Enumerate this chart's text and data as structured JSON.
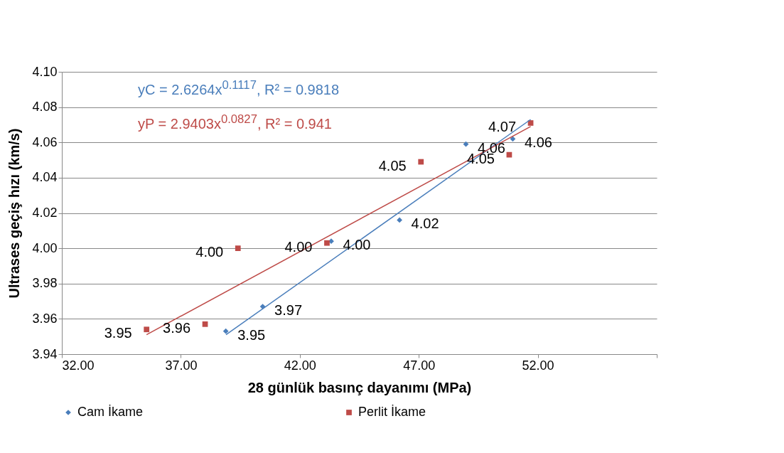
{
  "chart_data": {
    "type": "scatter",
    "xlabel": "28 günlük basınç dayanımı (MPa)",
    "ylabel": "Ultrases geçiş hızı (km/s)",
    "xlim": [
      32,
      57
    ],
    "xticks": [
      {
        "value": 32,
        "label": "32.00"
      },
      {
        "value": 37,
        "label": "37.00"
      },
      {
        "value": 42,
        "label": "42.00"
      },
      {
        "value": 47,
        "label": "47.00"
      },
      {
        "value": 52,
        "label": "52.00"
      },
      {
        "value": 57,
        "label": null
      }
    ],
    "ylim": [
      3.94,
      4.1
    ],
    "yticks": [
      {
        "value": 3.94,
        "label": "3.94"
      },
      {
        "value": 3.96,
        "label": "3.96"
      },
      {
        "value": 3.98,
        "label": "3.98"
      },
      {
        "value": 4.0,
        "label": "4.00"
      },
      {
        "value": 4.02,
        "label": "4.02"
      },
      {
        "value": 4.04,
        "label": "4.04"
      },
      {
        "value": 4.06,
        "label": "4.06"
      },
      {
        "value": 4.08,
        "label": "4.08"
      },
      {
        "value": 4.1,
        "label": "4.10"
      }
    ],
    "grid": "y",
    "legend": "bottom",
    "annotations": [
      "yC = 2.6264x$^{0.1117}$,  R² = 0.9818",
      "yP = 2.9403x$^{0.0827}$,  R² = 0.941"
    ],
    "series": [
      {
        "name": "Cam İkame",
        "color": "#4a7ebb",
        "marker": "diamond",
        "x": [
          38.89,
          40.44,
          43.32,
          46.19,
          48.98,
          50.95
        ],
        "values": [
          3.953,
          3.967,
          4.004,
          4.016,
          4.059,
          4.062
        ],
        "value_labels": [
          "3.95",
          "3.97",
          "4.00",
          "4.02",
          "4.06",
          "4.06"
        ]
      },
      {
        "name": "Perlit İkame",
        "color": "#be4b48",
        "marker": "square",
        "x": [
          35.56,
          38.02,
          39.4,
          43.14,
          47.09,
          50.8,
          51.7
        ],
        "values": [
          3.954,
          3.957,
          4.0,
          4.003,
          4.049,
          4.053,
          4.071
        ],
        "value_labels": [
          "3.95",
          "3.96",
          "4.00",
          "4.00",
          "4.05",
          "4.05",
          "4.07"
        ]
      },
      {
        "type": "line",
        "color": "#4a7ebb",
        "x": [
          38.9,
          51.7
        ],
        "values": [
          3.951,
          4.073
        ]
      },
      {
        "type": "line",
        "color": "#be4b48",
        "x": [
          35.56,
          51.7
        ],
        "values": [
          3.951,
          4.069
        ]
      }
    ]
  }
}
